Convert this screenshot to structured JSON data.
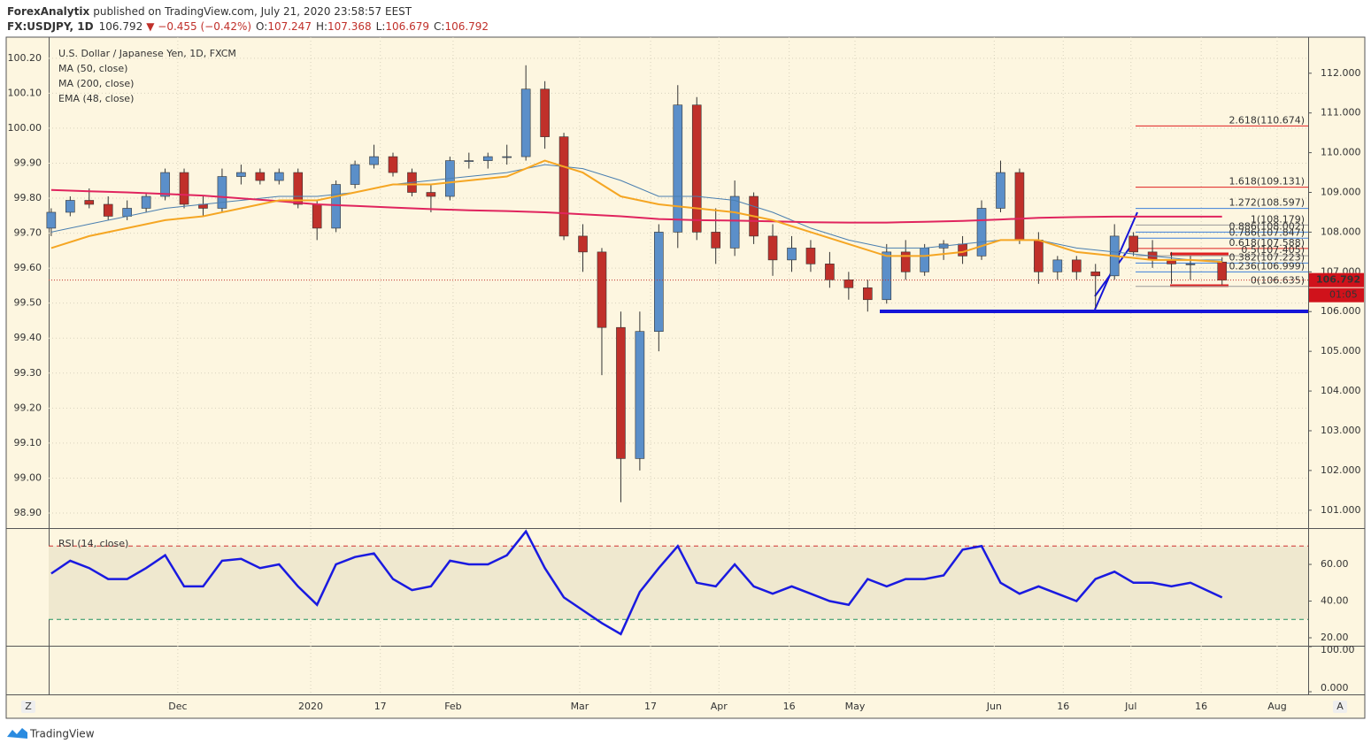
{
  "header": {
    "author": "ForexAnalytix",
    "published": "published on TradingView.com, July 21, 2020 23:58:57 EEST",
    "symbol": "FX:USDJPY, 1D",
    "last": "106.792",
    "change": "▼ −0.455 (−0.42%)",
    "ohlc": [
      {
        "k": "O:",
        "v": "107.247"
      },
      {
        "k": "H:",
        "v": "107.368"
      },
      {
        "k": "L:",
        "v": "106.679"
      },
      {
        "k": "C:",
        "v": "106.792"
      }
    ]
  },
  "footer": {
    "brand": "TradingView",
    "left_button": "Z",
    "right_button": "A"
  },
  "chart_data": [
    {
      "type": "candlestick",
      "xlim": [
        -0.4,
        198.6
      ],
      "xticks": [
        {
          "value": 20,
          "label": "Dec"
        },
        {
          "value": 41,
          "label": "2020"
        },
        {
          "value": 52,
          "label": "17"
        },
        {
          "value": 63.5,
          "label": "Feb"
        },
        {
          "value": 83.5,
          "label": "Mar"
        },
        {
          "value": 94.7,
          "label": "17"
        },
        {
          "value": 105.5,
          "label": "Apr"
        },
        {
          "value": 116.6,
          "label": "16"
        },
        {
          "value": 127,
          "label": "May"
        },
        {
          "value": 149,
          "label": "Jun"
        },
        {
          "value": 159.9,
          "label": "16"
        },
        {
          "value": 170.6,
          "label": "Jul"
        },
        {
          "value": 181.7,
          "label": "16"
        },
        {
          "value": 193.7,
          "label": "Aug"
        }
      ],
      "ylim": [
        100.55,
        112.73
      ],
      "yticks": [
        {
          "value": 101,
          "label": "101.000"
        },
        {
          "value": 102,
          "label": "102.000"
        },
        {
          "value": 103,
          "label": "103.000"
        },
        {
          "value": 104,
          "label": "104.000"
        },
        {
          "value": 105,
          "label": "105.000"
        },
        {
          "value": 106,
          "label": "106.000"
        },
        {
          "value": 107,
          "label": "107.000"
        },
        {
          "value": 108,
          "label": "108.000"
        },
        {
          "value": 109,
          "label": "109.000"
        },
        {
          "value": 110,
          "label": "110.000"
        },
        {
          "value": 111,
          "label": "111.000"
        },
        {
          "value": 112,
          "label": "112.000"
        }
      ],
      "y2lim": [
        98.857,
        100.24
      ],
      "y2ticks": [
        {
          "value": 98.9,
          "label": "98.90"
        },
        {
          "value": 99,
          "label": "99.00"
        },
        {
          "value": 99.1,
          "label": "99.10"
        },
        {
          "value": 99.2,
          "label": "99.20"
        },
        {
          "value": 99.3,
          "label": "99.30"
        },
        {
          "value": 99.4,
          "label": "99.40"
        },
        {
          "value": 99.5,
          "label": "99.50"
        },
        {
          "value": 99.6,
          "label": "99.60"
        },
        {
          "value": 99.7,
          "label": "99.70"
        },
        {
          "value": 99.8,
          "label": "99.80"
        },
        {
          "value": 99.9,
          "label": "99.90"
        },
        {
          "value": 100,
          "label": "100.00"
        },
        {
          "value": 100.1,
          "label": "100.10"
        },
        {
          "value": 100.2,
          "label": "100.20"
        }
      ],
      "grid": true,
      "series": [
        {
          "name": "U.S. Dollar / Japanese Yen, 1D, FXCM",
          "up_color": "#5b8fc9",
          "down_color": "#c0302a",
          "x": [
            0,
            3,
            6,
            9,
            12,
            15,
            18,
            21,
            24,
            27,
            30,
            33,
            36,
            39,
            42,
            45,
            48,
            51,
            54,
            57,
            60,
            63,
            66,
            69,
            72,
            75,
            78,
            81,
            84,
            87,
            90,
            93,
            96,
            99,
            102,
            105,
            108,
            111,
            114,
            117,
            120,
            123,
            126,
            129,
            132,
            135,
            138,
            141,
            144,
            147,
            150,
            153,
            156,
            159,
            162,
            165,
            168,
            171,
            174,
            177,
            180,
            185
          ],
          "ohlc": [
            [
              108.1,
              108.6,
              107.9,
              108.5
            ],
            [
              108.5,
              108.9,
              108.4,
              108.8
            ],
            [
              108.8,
              109.1,
              108.6,
              108.7
            ],
            [
              108.7,
              108.9,
              108.3,
              108.4
            ],
            [
              108.4,
              108.8,
              108.3,
              108.6
            ],
            [
              108.6,
              109.0,
              108.5,
              108.9
            ],
            [
              108.9,
              109.6,
              108.8,
              109.5
            ],
            [
              109.5,
              109.6,
              108.6,
              108.7
            ],
            [
              108.7,
              108.9,
              108.4,
              108.6
            ],
            [
              108.6,
              109.6,
              108.5,
              109.4
            ],
            [
              109.4,
              109.7,
              109.2,
              109.5
            ],
            [
              109.5,
              109.6,
              109.2,
              109.3
            ],
            [
              109.3,
              109.6,
              109.2,
              109.5
            ],
            [
              109.5,
              109.6,
              108.6,
              108.7
            ],
            [
              108.7,
              108.8,
              107.8,
              108.1
            ],
            [
              108.1,
              109.3,
              108.0,
              109.2
            ],
            [
              109.2,
              109.8,
              109.1,
              109.7
            ],
            [
              109.7,
              110.2,
              109.6,
              109.9
            ],
            [
              109.9,
              110.0,
              109.4,
              109.5
            ],
            [
              109.5,
              109.6,
              108.9,
              109.0
            ],
            [
              109.0,
              109.2,
              108.5,
              108.9
            ],
            [
              108.9,
              109.9,
              108.8,
              109.8
            ],
            [
              109.8,
              110.0,
              109.6,
              109.8
            ],
            [
              109.8,
              110.0,
              109.6,
              109.9
            ],
            [
              109.9,
              110.2,
              109.7,
              109.9
            ],
            [
              109.9,
              112.2,
              109.8,
              111.6
            ],
            [
              111.6,
              111.8,
              110.1,
              110.4
            ],
            [
              110.4,
              110.5,
              107.8,
              107.9
            ],
            [
              107.9,
              108.2,
              107.0,
              107.5
            ],
            [
              107.5,
              107.6,
              104.4,
              105.6
            ],
            [
              105.6,
              106.0,
              101.2,
              102.3
            ],
            [
              102.3,
              106.0,
              102.0,
              105.5
            ],
            [
              105.5,
              108.2,
              105.0,
              108.0
            ],
            [
              108.0,
              111.7,
              107.6,
              111.2
            ],
            [
              111.2,
              111.4,
              107.8,
              108.0
            ],
            [
              108.0,
              108.6,
              107.2,
              107.6
            ],
            [
              107.6,
              109.3,
              107.4,
              108.9
            ],
            [
              108.9,
              109.0,
              107.7,
              107.9
            ],
            [
              107.9,
              108.2,
              106.9,
              107.3
            ],
            [
              107.3,
              107.9,
              107.0,
              107.6
            ],
            [
              107.6,
              107.8,
              107.0,
              107.2
            ],
            [
              107.2,
              107.5,
              106.6,
              106.8
            ],
            [
              106.8,
              107.0,
              106.3,
              106.6
            ],
            [
              106.6,
              106.8,
              106.0,
              106.3
            ],
            [
              106.3,
              107.7,
              106.2,
              107.5
            ],
            [
              107.5,
              107.8,
              106.8,
              107.0
            ],
            [
              107.0,
              107.7,
              106.9,
              107.6
            ],
            [
              107.6,
              107.8,
              107.3,
              107.7
            ],
            [
              107.7,
              107.9,
              107.2,
              107.4
            ],
            [
              107.4,
              108.8,
              107.3,
              108.6
            ],
            [
              108.6,
              109.8,
              108.5,
              109.5
            ],
            [
              109.5,
              109.6,
              107.7,
              107.8
            ],
            [
              107.8,
              108.0,
              106.7,
              107.0
            ],
            [
              107.0,
              107.4,
              106.8,
              107.3
            ],
            [
              107.3,
              107.4,
              106.8,
              107.0
            ],
            [
              107.0,
              107.2,
              106.1,
              106.9
            ],
            [
              106.9,
              108.2,
              106.8,
              107.9
            ],
            [
              107.9,
              108.0,
              107.4,
              107.5
            ],
            [
              107.5,
              107.8,
              107.1,
              107.3
            ],
            [
              107.3,
              107.5,
              106.7,
              107.2
            ],
            [
              107.2,
              107.4,
              106.8,
              107.2
            ],
            [
              107.247,
              107.368,
              106.679,
              106.792
            ]
          ]
        },
        {
          "name": "MA (50, close)",
          "color": "#4a7fb0",
          "width": 1,
          "x": [
            0,
            6,
            12,
            18,
            24,
            30,
            36,
            42,
            48,
            54,
            60,
            66,
            72,
            78,
            84,
            90,
            96,
            102,
            108,
            114,
            120,
            126,
            132,
            138,
            144,
            150,
            156,
            162,
            168,
            174,
            180,
            185
          ],
          "values": [
            108.0,
            108.2,
            108.4,
            108.6,
            108.7,
            108.8,
            108.9,
            108.9,
            109.0,
            109.2,
            109.3,
            109.4,
            109.5,
            109.7,
            109.6,
            109.3,
            108.9,
            108.9,
            108.8,
            108.5,
            108.1,
            107.8,
            107.6,
            107.6,
            107.7,
            107.8,
            107.8,
            107.6,
            107.5,
            107.4,
            107.3,
            107.3
          ]
        },
        {
          "name": "MA (200, close)",
          "color": "#e0245e",
          "width": 2,
          "x": [
            0,
            6,
            12,
            18,
            24,
            30,
            36,
            42,
            48,
            54,
            60,
            66,
            72,
            78,
            84,
            90,
            96,
            102,
            108,
            114,
            120,
            126,
            132,
            138,
            144,
            150,
            156,
            162,
            168,
            174,
            180,
            185
          ],
          "values": [
            109.06,
            109.03,
            109.0,
            108.96,
            108.92,
            108.85,
            108.78,
            108.7,
            108.66,
            108.62,
            108.58,
            108.55,
            108.53,
            108.5,
            108.45,
            108.4,
            108.33,
            108.3,
            108.29,
            108.27,
            108.25,
            108.24,
            108.24,
            108.26,
            108.28,
            108.32,
            108.36,
            108.38,
            108.39,
            108.39,
            108.39,
            108.39
          ]
        },
        {
          "name": "EMA (48, close)",
          "color": "#f5a623",
          "width": 2,
          "x": [
            0,
            6,
            12,
            18,
            24,
            30,
            36,
            42,
            48,
            54,
            60,
            66,
            72,
            78,
            84,
            90,
            96,
            102,
            108,
            114,
            120,
            126,
            132,
            138,
            144,
            150,
            156,
            162,
            168,
            174,
            180,
            185
          ],
          "values": [
            107.6,
            107.9,
            108.1,
            108.3,
            108.4,
            108.6,
            108.8,
            108.8,
            109.0,
            109.2,
            109.2,
            109.3,
            109.4,
            109.8,
            109.5,
            108.9,
            108.7,
            108.6,
            108.5,
            108.3,
            108.0,
            107.7,
            107.4,
            107.4,
            107.5,
            107.8,
            107.8,
            107.5,
            107.4,
            107.3,
            107.3,
            107.25
          ]
        }
      ],
      "fib_levels": [
        {
          "label": "2.618(110.674)",
          "value": 110.674,
          "color": "#e02020"
        },
        {
          "label": "1.618(109.131)",
          "value": 109.131,
          "color": "#e02020"
        },
        {
          "label": "1.272(108.597)",
          "value": 108.597,
          "color": "#3d7fd9"
        },
        {
          "label": "1(108.179)",
          "value": 108.179,
          "color": "#999999"
        },
        {
          "label": "0.886(108.002)",
          "value": 108.002,
          "color": "#3d7fd9"
        },
        {
          "label": "0.786(107.847)",
          "value": 107.847,
          "color": "#3d7fd9"
        },
        {
          "label": "0.618(107.588)",
          "value": 107.588,
          "color": "#e02020"
        },
        {
          "label": "0.5(107.405)",
          "value": 107.405,
          "color": "#999999"
        },
        {
          "label": "0.382(107.223)",
          "value": 107.223,
          "color": "#3d7fd9"
        },
        {
          "label": "0.236(106.999)",
          "value": 106.999,
          "color": "#3d7fd9"
        },
        {
          "label": "0(106.635)",
          "value": 106.635,
          "color": "#999999"
        }
      ],
      "last_value": 106.792,
      "countdown": "01:05"
    },
    {
      "type": "line",
      "title": "RSI (14, close)",
      "color": "#1a1ae0",
      "ylim": [
        15.66,
        79.3
      ],
      "yticks": [
        {
          "value": 20,
          "label": "20.00"
        },
        {
          "value": 40,
          "label": "40.00"
        },
        {
          "value": 60,
          "label": "60.00"
        }
      ],
      "bands": [
        70,
        30
      ],
      "x": [
        0,
        3,
        6,
        9,
        12,
        15,
        18,
        21,
        24,
        27,
        30,
        33,
        36,
        39,
        42,
        45,
        48,
        51,
        54,
        57,
        60,
        63,
        66,
        69,
        72,
        75,
        78,
        81,
        84,
        87,
        90,
        93,
        96,
        99,
        102,
        105,
        108,
        111,
        114,
        117,
        120,
        123,
        126,
        129,
        132,
        135,
        138,
        141,
        144,
        147,
        150,
        153,
        156,
        159,
        162,
        165,
        168,
        171,
        174,
        177,
        180,
        185
      ],
      "values": [
        55,
        62,
        58,
        52,
        52,
        58,
        65,
        48,
        48,
        62,
        63,
        58,
        60,
        48,
        38,
        60,
        64,
        66,
        52,
        46,
        48,
        62,
        60,
        60,
        65,
        78,
        58,
        42,
        35,
        28,
        22,
        45,
        58,
        70,
        50,
        48,
        60,
        48,
        44,
        48,
        44,
        40,
        38,
        52,
        48,
        52,
        52,
        54,
        68,
        70,
        50,
        44,
        48,
        44,
        40,
        52,
        56,
        50,
        50,
        48,
        50,
        42
      ]
    },
    {
      "type": "empty",
      "ylim": [
        -5.9,
        100
      ],
      "yticks": [
        {
          "value": 100,
          "label": "100.00"
        },
        {
          "value": 0,
          "label": "0.000"
        }
      ]
    }
  ]
}
